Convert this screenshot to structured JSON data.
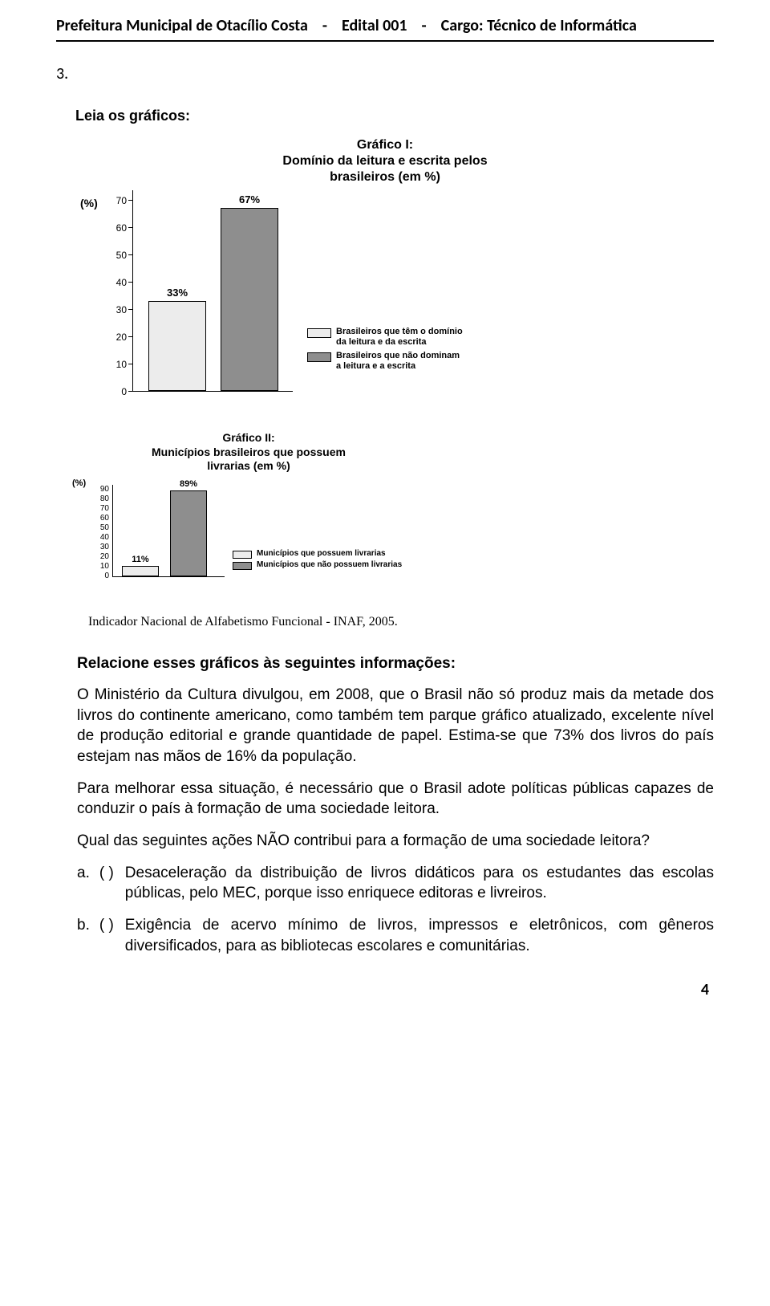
{
  "header": {
    "org": "Prefeitura Municipal de Otacílio Costa",
    "sep": "-",
    "edital": "Edital 001",
    "cargo_label": "Cargo:",
    "cargo_value": "Técnico de Informática"
  },
  "question_number": "3.",
  "section_heading": "Leia os gráficos:",
  "chart1": {
    "title_line1": "Gráfico I:",
    "title_line2": "Domínio da leitura e escrita pelos",
    "title_line3": "brasileiros (em %)",
    "y_unit": "(%)",
    "ticks": [
      "70",
      "60",
      "50",
      "40",
      "30",
      "20",
      "10",
      "0"
    ],
    "bar1_label": "33%",
    "bar1_value": 33,
    "bar1_color": "#ececec",
    "bar2_label": "67%",
    "bar2_value": 67,
    "bar2_color": "#8e8e8e",
    "legend1": "Brasileiros que têm o domínio\nda leitura e da escrita",
    "legend2": "Brasileiros que não dominam\na leitura e a escrita"
  },
  "chart2": {
    "title_line1": "Gráfico II:",
    "title_line2": "Municípios brasileiros que possuem",
    "title_line3": "livrarias (em %)",
    "y_unit": "(%)",
    "ticks": [
      "90",
      "80",
      "70",
      "60",
      "50",
      "40",
      "30",
      "20",
      "10",
      "0"
    ],
    "bar1_label": "11%",
    "bar1_value": 11,
    "bar1_color": "#ececec",
    "bar2_label": "89%",
    "bar2_value": 89,
    "bar2_color": "#8e8e8e",
    "legend1": "Municípios que possuem livrarias",
    "legend2": "Municípios que não possuem livrarias"
  },
  "source_note": "Indicador Nacional de Alfabetismo Funcional - INAF, 2005.",
  "prompt_heading": "Relacione esses gráficos às seguintes informações:",
  "para1": "O Ministério da Cultura divulgou, em 2008, que o Brasil não só produz mais da metade dos livros do continente americano, como também tem parque gráfico atualizado, excelente nível de produção editorial e grande quantidade de papel. Estima-se  que  73%  dos  livros  do  país estejam nas mãos de 16% da população.",
  "para2": "Para melhorar  essa  situação,  é  necessário  que  o Brasil  adote  políticas públicas  capazes  de conduzir o país à formação de uma sociedade leitora.",
  "para3": "Qual das seguintes ações NÃO contribui para a formação de uma sociedade leitora?",
  "options": {
    "a_letter": "a.",
    "a_paren": "(     )",
    "a_text": "Desaceleração da distribuição  de  livros  didáticos  para  os estudantes  das  escolas  públicas,  pelo MEC, porque isso enriquece editoras e livreiros.",
    "b_letter": "b.",
    "b_paren": "(     )",
    "b_text": "Exigência de acervo mínimo de livros, impressos e eletrônicos, com gêneros diversificados, para as bibliotecas escolares e comunitárias."
  },
  "page_number": "4"
}
